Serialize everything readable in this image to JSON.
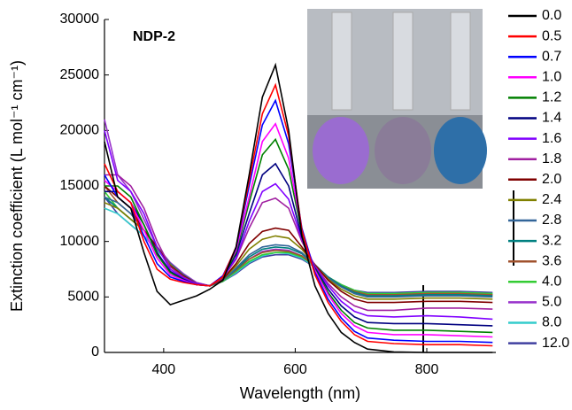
{
  "chart_data": {
    "type": "line",
    "annotation": "NDP-2",
    "x_label": "Wavelength (nm)",
    "y_label": "Extinction coefficient (L mol⁻¹ cm⁻¹)",
    "xlim": [
      310,
      905
    ],
    "ylim": [
      0,
      30000
    ],
    "xticks": [
      400,
      600,
      800
    ],
    "yticks": [
      0,
      5000,
      10000,
      15000,
      20000,
      25000,
      30000
    ],
    "x": [
      310,
      330,
      350,
      370,
      390,
      410,
      430,
      450,
      470,
      490,
      510,
      530,
      550,
      570,
      590,
      610,
      630,
      650,
      670,
      690,
      710,
      750,
      800,
      850,
      900
    ],
    "series": [
      {
        "name": "0.0",
        "color": "#000000",
        "values": [
          19000,
          14000,
          13000,
          9000,
          5500,
          4300,
          4700,
          5100,
          5700,
          6500,
          9500,
          16000,
          23000,
          25900,
          20000,
          10500,
          6000,
          3500,
          1800,
          900,
          300,
          50,
          0,
          0,
          0
        ]
      },
      {
        "name": "0.5",
        "color": "#ff0000",
        "values": [
          17000,
          14500,
          13500,
          10000,
          7500,
          6600,
          6300,
          6100,
          6000,
          6800,
          9500,
          15500,
          21500,
          24100,
          19500,
          11000,
          7000,
          4500,
          2800,
          1600,
          1000,
          800,
          700,
          700,
          600
        ]
      },
      {
        "name": "0.7",
        "color": "#0000ff",
        "values": [
          16000,
          14000,
          13000,
          10500,
          8000,
          6800,
          6400,
          6100,
          6000,
          6900,
          9400,
          15000,
          20500,
          22700,
          18800,
          11200,
          7200,
          4800,
          3100,
          1900,
          1300,
          1100,
          1000,
          1000,
          900
        ]
      },
      {
        "name": "1.0",
        "color": "#ff00ff",
        "values": [
          15500,
          14500,
          13500,
          11000,
          8500,
          7000,
          6500,
          6100,
          6000,
          6900,
          9200,
          14000,
          19000,
          20600,
          17500,
          11000,
          7400,
          5200,
          3500,
          2400,
          1800,
          1600,
          1600,
          1500,
          1400
        ]
      },
      {
        "name": "1.2",
        "color": "#008000",
        "values": [
          15000,
          15000,
          14000,
          11500,
          8800,
          7200,
          6500,
          6100,
          6000,
          6800,
          9000,
          13500,
          17800,
          19200,
          16500,
          10800,
          7500,
          5400,
          3800,
          2700,
          2200,
          2000,
          2000,
          1900,
          1800
        ]
      },
      {
        "name": "1.4",
        "color": "#000080",
        "values": [
          14500,
          14500,
          13500,
          11500,
          9000,
          7300,
          6600,
          6100,
          6000,
          6800,
          8800,
          12500,
          16000,
          17000,
          15000,
          10400,
          7600,
          5700,
          4200,
          3200,
          2700,
          2600,
          2600,
          2500,
          2400
        ]
      },
      {
        "name": "1.6",
        "color": "#8000ff",
        "values": [
          20000,
          15500,
          14500,
          12500,
          9500,
          7500,
          6700,
          6200,
          6000,
          6800,
          8500,
          11800,
          14500,
          15200,
          13800,
          10200,
          7700,
          6000,
          4600,
          3700,
          3300,
          3200,
          3300,
          3200,
          3000
        ]
      },
      {
        "name": "1.8",
        "color": "#a020a0",
        "values": [
          16000,
          16000,
          15000,
          13000,
          10000,
          7700,
          6800,
          6200,
          6000,
          6700,
          8400,
          11200,
          13500,
          13900,
          13000,
          10000,
          7800,
          6200,
          5000,
          4200,
          3800,
          3800,
          4000,
          4000,
          3900
        ]
      },
      {
        "name": "2.0",
        "color": "#800000",
        "values": [
          15000,
          14000,
          13000,
          11000,
          9500,
          7800,
          6900,
          6200,
          6000,
          6600,
          8000,
          9800,
          10900,
          11200,
          11000,
          9500,
          7900,
          6500,
          5500,
          4800,
          4500,
          4500,
          4600,
          4600,
          4500
        ]
      },
      {
        "name": "2.4",
        "color": "#808000",
        "values": [
          13500,
          13000,
          12000,
          11000,
          9500,
          7900,
          6900,
          6200,
          6000,
          6600,
          7800,
          9300,
          10200,
          10500,
          10300,
          9300,
          7900,
          6600,
          5700,
          5100,
          4800,
          4800,
          4900,
          4900,
          4800
        ]
      },
      {
        "name": "2.8",
        "color": "#336699",
        "values": [
          14000,
          13500,
          12500,
          11000,
          9500,
          8000,
          7000,
          6200,
          6000,
          6500,
          7600,
          8800,
          9500,
          9700,
          9600,
          9000,
          7900,
          6700,
          5900,
          5300,
          5000,
          5000,
          5100,
          5100,
          5000
        ]
      },
      {
        "name": "3.2",
        "color": "#008080",
        "values": [
          14000,
          13000,
          12000,
          11000,
          9500,
          8000,
          7000,
          6200,
          6000,
          6500,
          7500,
          8600,
          9300,
          9500,
          9400,
          8900,
          7900,
          6800,
          6000,
          5400,
          5100,
          5100,
          5200,
          5200,
          5100
        ]
      },
      {
        "name": "3.6",
        "color": "#a0522d",
        "values": [
          15000,
          13500,
          12500,
          11000,
          9400,
          8000,
          7000,
          6200,
          6000,
          6500,
          7400,
          8400,
          9000,
          9200,
          9100,
          8700,
          7800,
          6800,
          6000,
          5500,
          5200,
          5200,
          5300,
          5300,
          5200
        ]
      },
      {
        "name": "4.0",
        "color": "#33cc33",
        "values": [
          14500,
          13000,
          12000,
          11000,
          9300,
          8000,
          7000,
          6200,
          6000,
          6400,
          7300,
          8200,
          8800,
          9000,
          9000,
          8600,
          7800,
          6800,
          6100,
          5600,
          5300,
          5300,
          5400,
          5400,
          5300
        ]
      },
      {
        "name": "5.0",
        "color": "#9933cc",
        "values": [
          21000,
          16000,
          14500,
          12000,
          9500,
          8100,
          7100,
          6300,
          6000,
          6400,
          7400,
          8400,
          9100,
          9300,
          9200,
          8700,
          7800,
          6800,
          6000,
          5500,
          5200,
          5200,
          5300,
          5300,
          5200
        ]
      },
      {
        "name": "8.0",
        "color": "#33cccc",
        "values": [
          13000,
          12500,
          11500,
          10500,
          9200,
          8000,
          7000,
          6200,
          6000,
          6400,
          7200,
          8100,
          8700,
          9000,
          8900,
          8500,
          7700,
          6800,
          6100,
          5600,
          5300,
          5300,
          5400,
          5400,
          5300
        ]
      },
      {
        "name": "12.0",
        "color": "#4040a0",
        "values": [
          14000,
          12500,
          11500,
          10500,
          9200,
          8000,
          7000,
          6200,
          6000,
          6400,
          7100,
          8000,
          8600,
          8800,
          8800,
          8400,
          7700,
          6800,
          6100,
          5600,
          5400,
          5400,
          5500,
          5500,
          5400
        ]
      }
    ]
  }
}
